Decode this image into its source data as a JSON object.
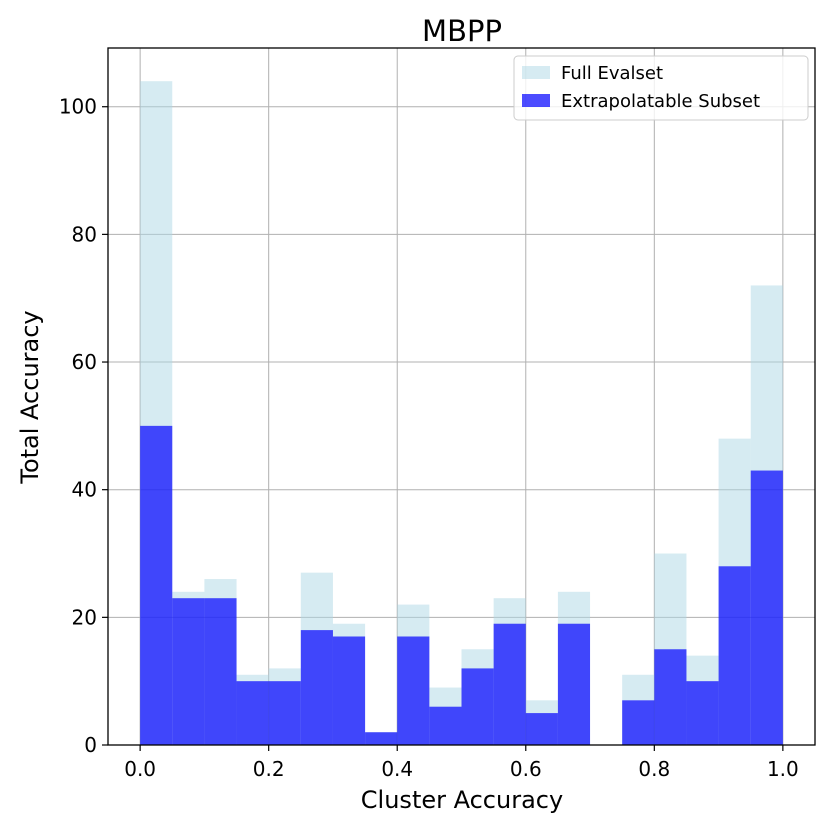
{
  "chart_data": {
    "type": "bar",
    "title": "MBPP",
    "xlabel": "Cluster Accuracy",
    "ylabel": "Total Accuracy",
    "bin_width": 0.05,
    "bin_starts": [
      0.0,
      0.05,
      0.1,
      0.15,
      0.2,
      0.25,
      0.3,
      0.35,
      0.4,
      0.45,
      0.5,
      0.55,
      0.6,
      0.65,
      0.7,
      0.75,
      0.8,
      0.85,
      0.9,
      0.95
    ],
    "series": [
      {
        "name": "Full Evalset",
        "color": "#add8e6",
        "opacity": 0.5,
        "values": [
          104,
          24,
          26,
          11,
          12,
          27,
          19,
          2,
          22,
          9,
          15,
          23,
          7,
          24,
          0,
          11,
          30,
          14,
          48,
          72
        ]
      },
      {
        "name": "Extrapolatable Subset",
        "color": "#0000ff",
        "opacity": 0.7,
        "values": [
          50,
          23,
          23,
          10,
          10,
          18,
          17,
          2,
          17,
          6,
          12,
          19,
          5,
          19,
          0,
          7,
          15,
          10,
          28,
          43
        ]
      }
    ],
    "xlim": [
      -0.05,
      1.05
    ],
    "ylim": [
      0,
      109.2
    ],
    "xticks": [
      0.0,
      0.2,
      0.4,
      0.6,
      0.8,
      1.0
    ],
    "xtick_labels": [
      "0.0",
      "0.2",
      "0.4",
      "0.6",
      "0.8",
      "1.0"
    ],
    "yticks": [
      0,
      20,
      40,
      60,
      80,
      100
    ],
    "ytick_labels": [
      "0",
      "20",
      "40",
      "60",
      "80",
      "100"
    ],
    "grid": true,
    "legend_position": "top-right"
  }
}
